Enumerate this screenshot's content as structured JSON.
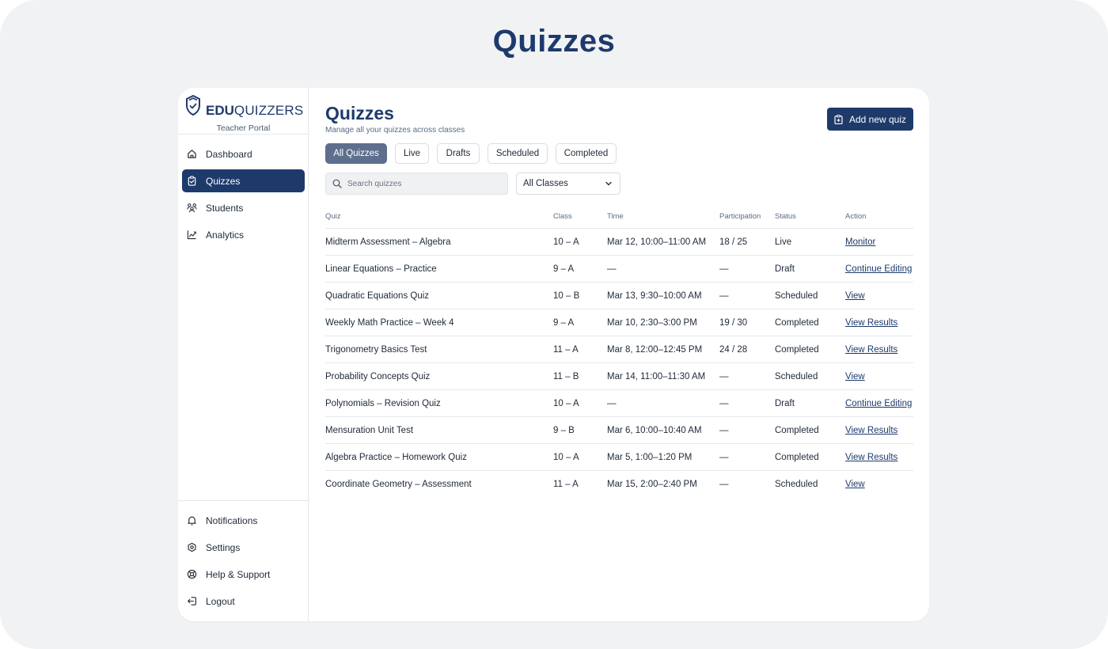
{
  "page_heading": "Quizzes",
  "brand": {
    "bold": "EDU",
    "light": "QUIZZERS",
    "portal": "Teacher Portal"
  },
  "nav": [
    {
      "label": "Dashboard",
      "icon": "home-icon"
    },
    {
      "label": "Quizzes",
      "icon": "clipboard-check-icon",
      "active": true
    },
    {
      "label": "Students",
      "icon": "users-icon"
    },
    {
      "label": "Analytics",
      "icon": "chart-line-icon"
    }
  ],
  "bottom_nav": [
    {
      "label": "Notifications",
      "icon": "bell-icon"
    },
    {
      "label": "Settings",
      "icon": "gear-icon"
    },
    {
      "label": "Help & Support",
      "icon": "lifebuoy-icon"
    },
    {
      "label": "Logout",
      "icon": "logout-icon"
    }
  ],
  "main": {
    "title": "Quizzes",
    "subtitle": "Manage all your quizzes across classes",
    "add_button": "Add new quiz",
    "tabs": [
      "All Quizzes",
      "Live",
      "Drafts",
      "Scheduled",
      "Completed"
    ],
    "active_tab": "All Quizzes",
    "search": {
      "placeholder": "Search quizzes",
      "value": ""
    },
    "class_filter": "All Classes"
  },
  "table": {
    "headers": [
      "Quiz",
      "Class",
      "Time",
      "Participation",
      "Status",
      "Action"
    ],
    "rows": [
      [
        "Midterm Assessment – Algebra",
        "10 – A",
        "Mar 12, 10:00–11:00 AM",
        "18 / 25",
        "Live",
        "Monitor"
      ],
      [
        "Linear Equations – Practice",
        "9 – A",
        "—",
        "—",
        "Draft",
        "Continue Editing"
      ],
      [
        "Quadratic Equations Quiz",
        "10 – B",
        "Mar 13, 9:30–10:00 AM",
        "—",
        "Scheduled",
        "View"
      ],
      [
        "Weekly Math Practice – Week 4",
        "9 – A",
        "Mar 10, 2:30–3:00 PM",
        "19 / 30",
        "Completed",
        "View Results"
      ],
      [
        "Trigonometry Basics Test",
        "11 – A",
        "Mar 8, 12:00–12:45 PM",
        "24 / 28",
        "Completed",
        "View Results"
      ],
      [
        "Probability Concepts Quiz",
        "11 – B",
        "Mar 14, 11:00–11:30 AM",
        "—",
        "Scheduled",
        "View"
      ],
      [
        "Polynomials – Revision Quiz",
        "10 – A",
        "—",
        "—",
        "Draft",
        "Continue Editing"
      ],
      [
        "Mensuration Unit Test",
        "9 – B",
        "Mar 6, 10:00–10:40 AM",
        "—",
        "Completed",
        "View Results"
      ],
      [
        "Algebra Practice – Homework Quiz",
        "10 – A",
        "Mar 5, 1:00–1:20 PM",
        "—",
        "Completed",
        "View Results"
      ],
      [
        "Coordinate Geometry – Assessment",
        "11 – A",
        "Mar 15, 2:00–2:40 PM",
        "—",
        "Scheduled",
        "View"
      ]
    ]
  },
  "colors": {
    "brand": "#1e3a6b",
    "active_tab": "#5e6f8d",
    "background": "#f1f2f4"
  }
}
